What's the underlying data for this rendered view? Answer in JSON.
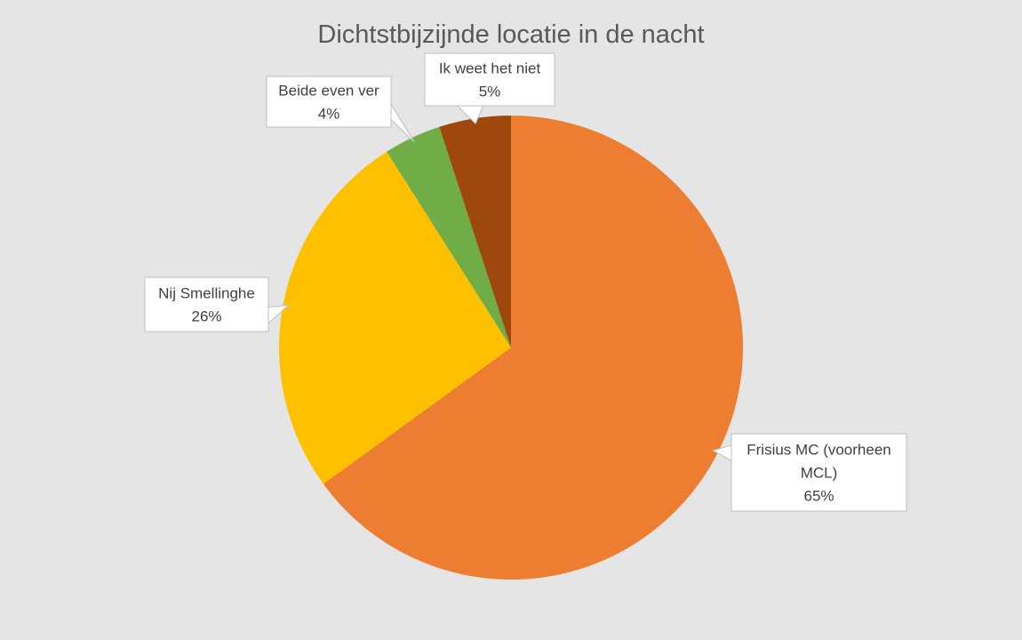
{
  "chart_data": {
    "type": "pie",
    "title": "Dichtstbijzijnde locatie in de nacht",
    "start_angle_deg": 0,
    "direction": "clockwise",
    "slices": [
      {
        "label_lines": [
          "Frisius MC (voorheen",
          "MCL)"
        ],
        "value": 65,
        "value_label": "65%",
        "color": "#ED7D31"
      },
      {
        "label_lines": [
          "Nij Smellinghe"
        ],
        "value": 26,
        "value_label": "26%",
        "color": "#FFC000"
      },
      {
        "label_lines": [
          "Beide even ver"
        ],
        "value": 4,
        "value_label": "4%",
        "color": "#70AD47"
      },
      {
        "label_lines": [
          "Ik weet het niet"
        ],
        "value": 5,
        "value_label": "5%",
        "color": "#9E480E"
      }
    ]
  }
}
